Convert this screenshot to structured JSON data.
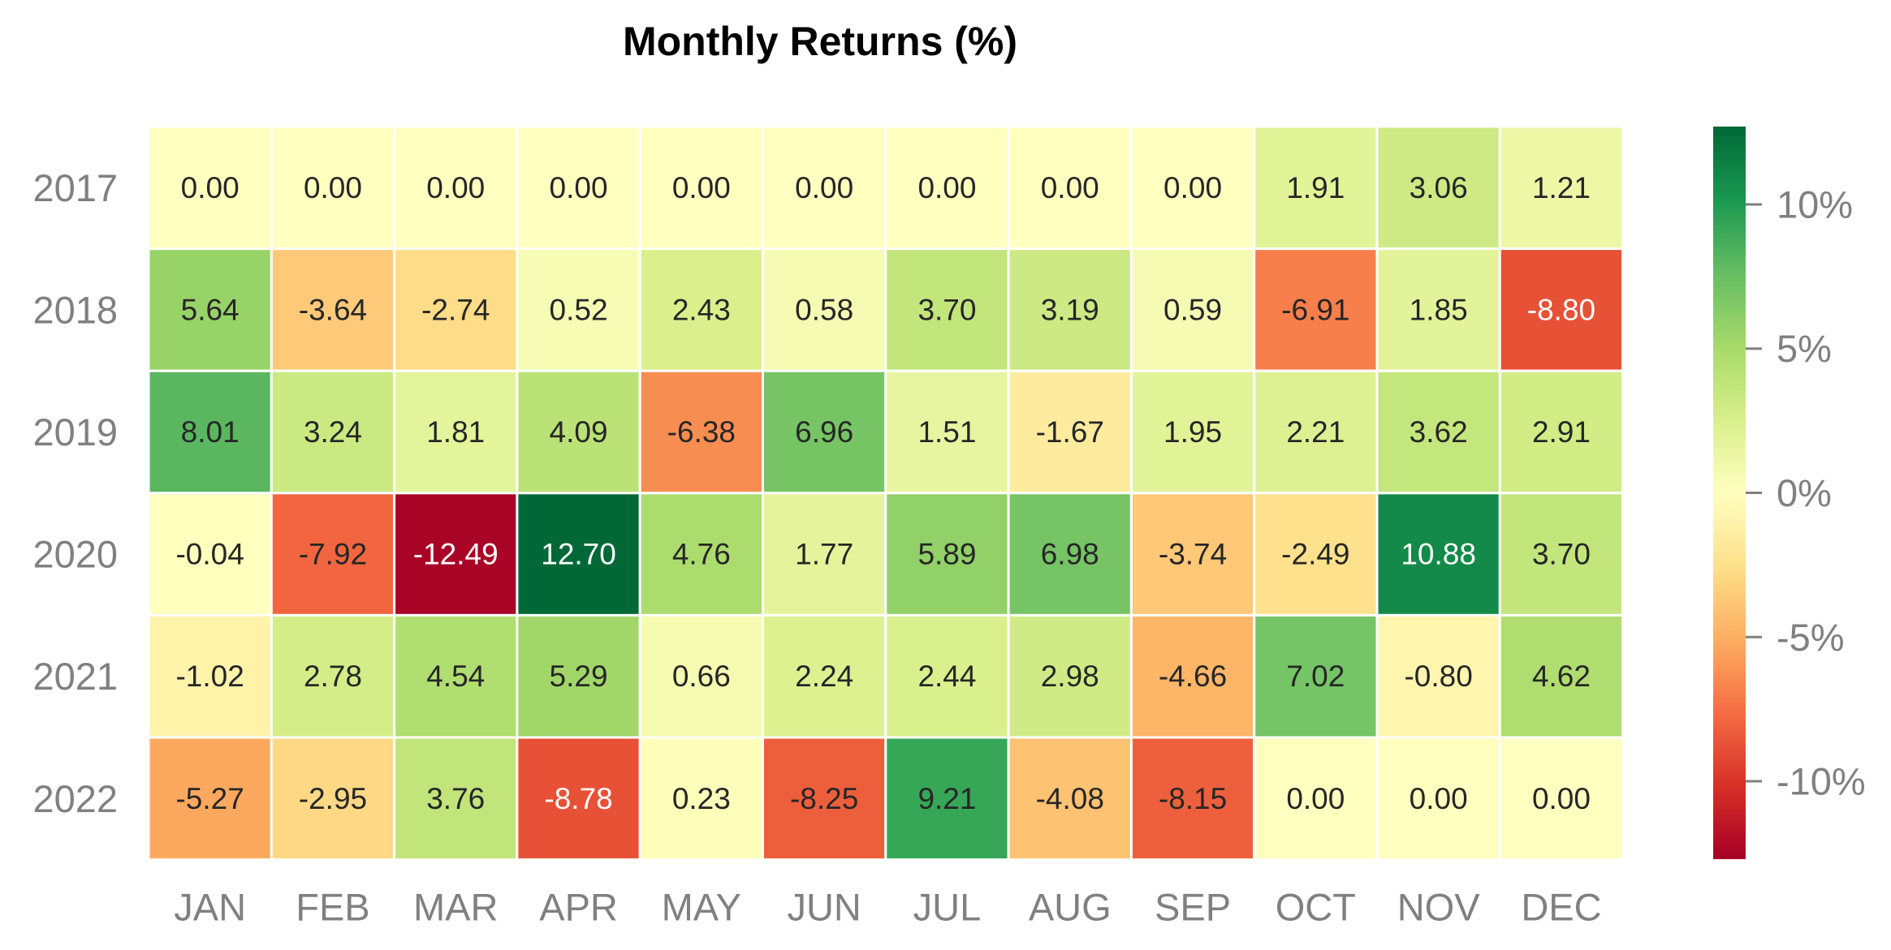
{
  "chart_data": {
    "type": "heatmap",
    "title": "Monthly Returns (%)",
    "xlabel": "",
    "ylabel": "",
    "x_categories": [
      "JAN",
      "FEB",
      "MAR",
      "APR",
      "MAY",
      "JUN",
      "JUL",
      "AUG",
      "SEP",
      "OCT",
      "NOV",
      "DEC"
    ],
    "y_categories": [
      "2017",
      "2018",
      "2019",
      "2020",
      "2021",
      "2022"
    ],
    "values": [
      [
        0.0,
        0.0,
        0.0,
        0.0,
        0.0,
        0.0,
        0.0,
        0.0,
        0.0,
        1.91,
        3.06,
        1.21
      ],
      [
        5.64,
        -3.64,
        -2.74,
        0.52,
        2.43,
        0.58,
        3.7,
        3.19,
        0.59,
        -6.91,
        1.85,
        -8.8
      ],
      [
        8.01,
        3.24,
        1.81,
        4.09,
        -6.38,
        6.96,
        1.51,
        -1.67,
        1.95,
        2.21,
        3.62,
        2.91
      ],
      [
        -0.04,
        -7.92,
        -12.49,
        12.7,
        4.76,
        1.77,
        5.89,
        6.98,
        -3.74,
        -2.49,
        10.88,
        3.7
      ],
      [
        -1.02,
        2.78,
        4.54,
        5.29,
        0.66,
        2.24,
        2.44,
        2.98,
        -4.66,
        7.02,
        -0.8,
        4.62
      ],
      [
        -5.27,
        -2.95,
        3.76,
        -8.78,
        0.23,
        -8.25,
        9.21,
        -4.08,
        -8.15,
        0.0,
        0.0,
        0.0
      ]
    ],
    "value_format": "2 decimals",
    "colormap": "RdYlGn",
    "color_range": [
      -12.7,
      12.7
    ],
    "colorbar": {
      "ticks": [
        10,
        5,
        0,
        -5,
        -10
      ],
      "tick_labels": [
        "10%",
        "5%",
        "0%",
        "-5%",
        "-10%"
      ]
    },
    "grid": false,
    "legend": "colorbar right"
  }
}
